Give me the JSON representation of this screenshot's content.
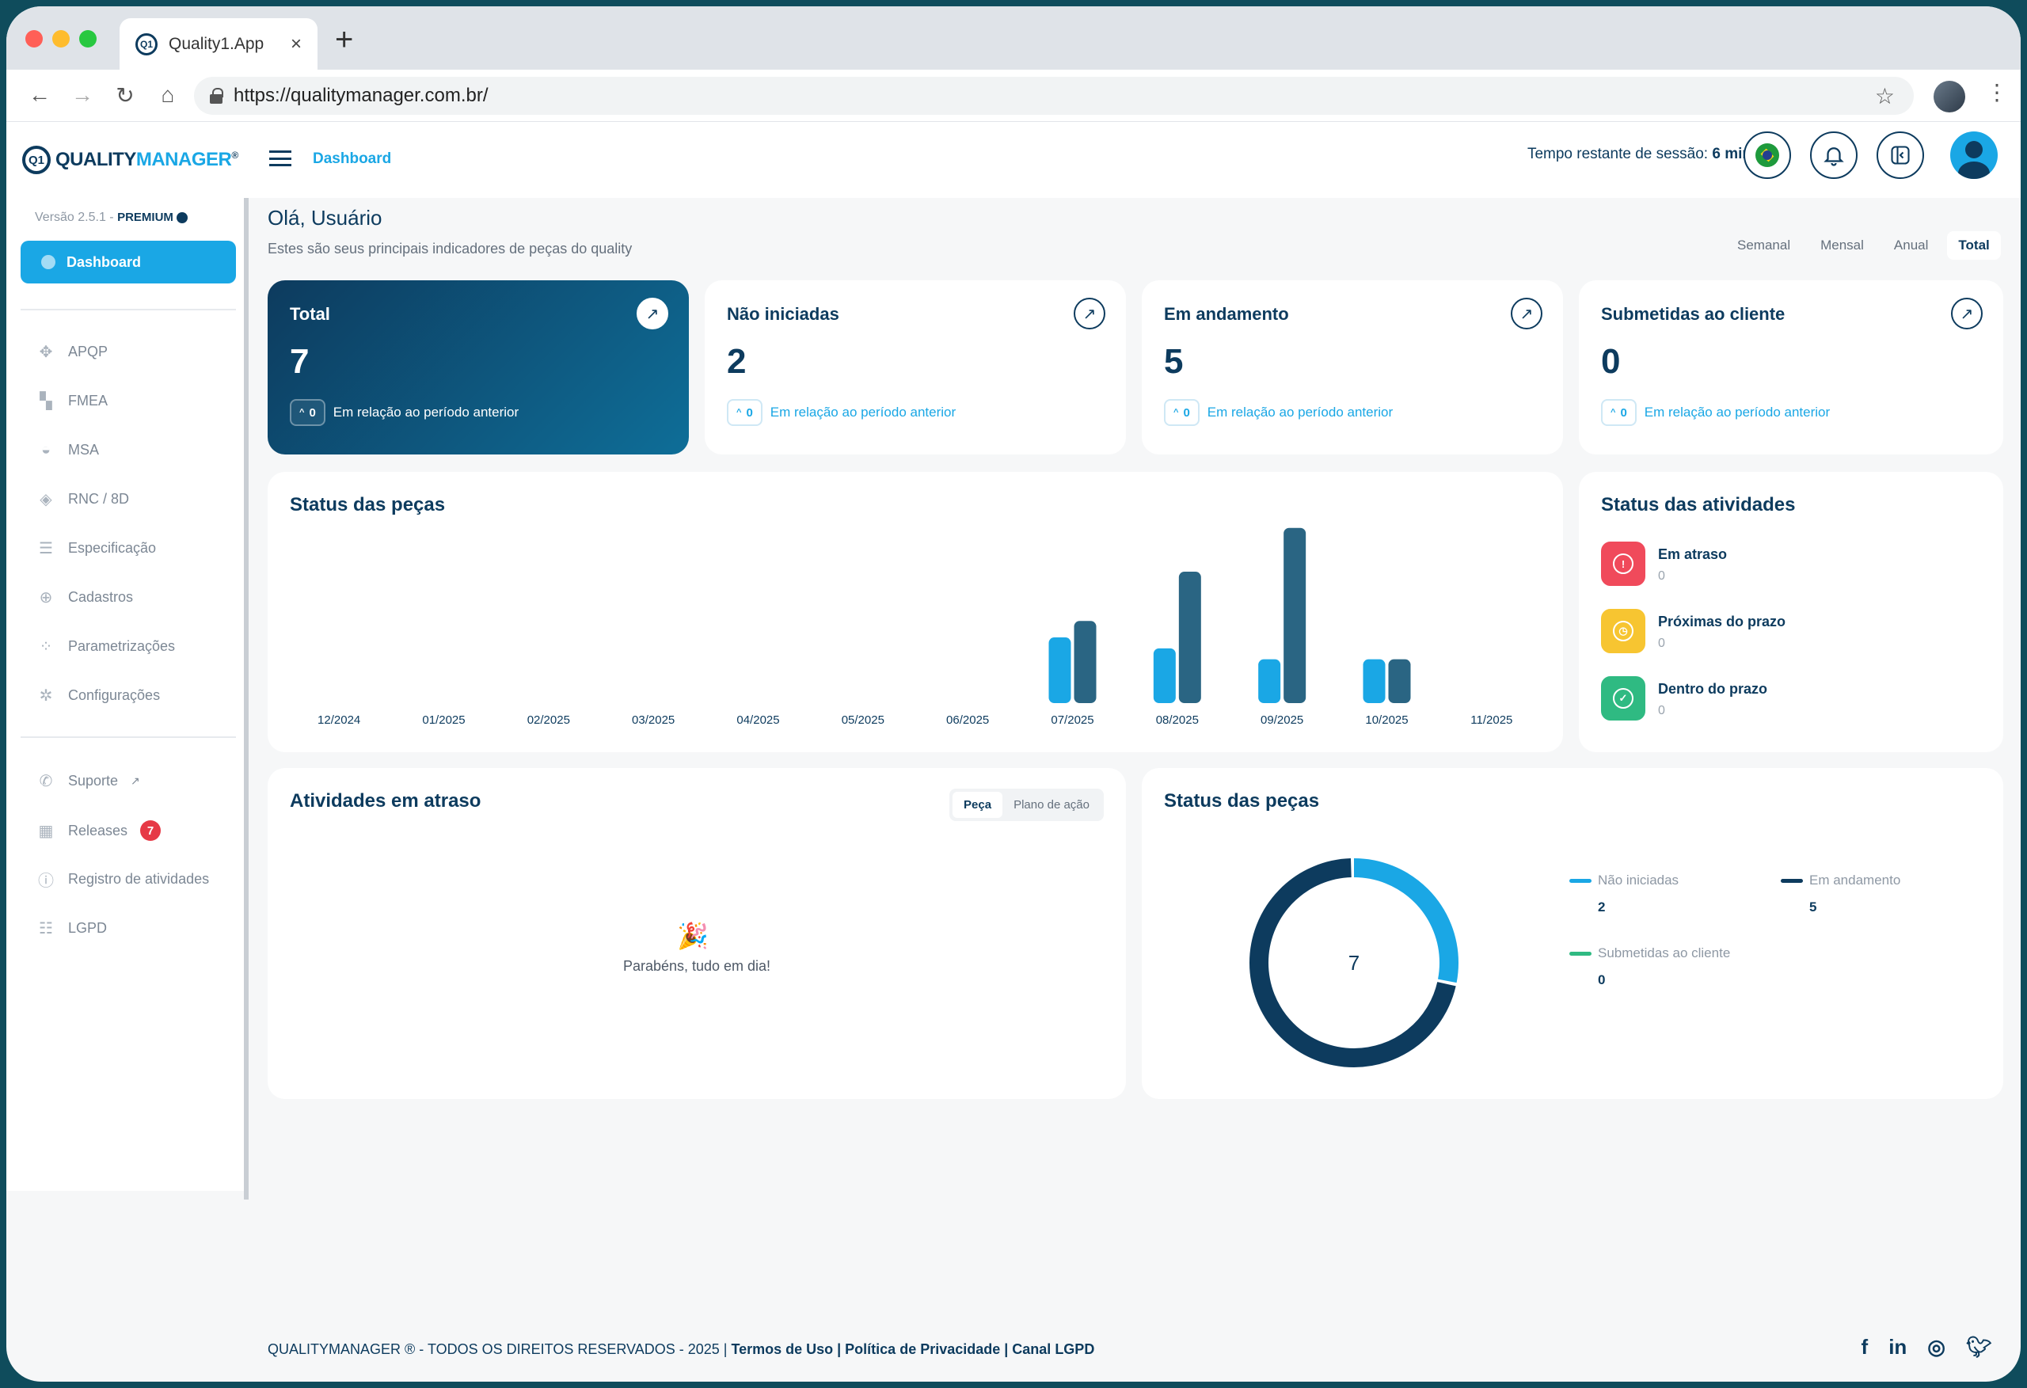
{
  "browser": {
    "tab_title": "Quality1.App",
    "tab_logo_text": "Q1",
    "url": "https://qualitymanager.com.br/"
  },
  "app": {
    "logo_part1": "QUALITY",
    "logo_part2": "MANAGER",
    "logo_reg": "®",
    "breadcrumb": "Dashboard",
    "session_label": "Tempo restante de sessão:",
    "session_value": "6 min"
  },
  "sidebar": {
    "version": "Versão 2.5.1 -",
    "plan": "PREMIUM",
    "active_item": "Dashboard",
    "items": [
      "APQP",
      "FMEA",
      "MSA",
      "RNC / 8D",
      "Especificação",
      "Cadastros",
      "Parametrizações",
      "Configurações"
    ],
    "bottom_items": [
      "Suporte",
      "Releases",
      "Registro de atividades",
      "LGPD"
    ],
    "releases_badge": "7"
  },
  "main": {
    "greeting": "Olá, Usuário",
    "subtitle": "Estes são seus principais indicadores de peças do quality",
    "periods": [
      "Semanal",
      "Mensal",
      "Anual",
      "Total"
    ],
    "selected_period": "Total"
  },
  "kpis": [
    {
      "title": "Total",
      "value": "7",
      "delta": "0",
      "delta_label": "Em relação ao período anterior"
    },
    {
      "title": "Não iniciadas",
      "value": "2",
      "delta": "0",
      "delta_label": "Em relação ao período anterior"
    },
    {
      "title": "Em andamento",
      "value": "5",
      "delta": "0",
      "delta_label": "Em relação ao período anterior"
    },
    {
      "title": "Submetidas ao cliente",
      "value": "0",
      "delta": "0",
      "delta_label": "Em relação ao período anterior"
    }
  ],
  "status_pecas_bar": {
    "title": "Status das peças"
  },
  "status_atividades": {
    "title": "Status das atividades",
    "items": [
      {
        "label": "Em atraso",
        "value": "0",
        "color": "#f04a5b"
      },
      {
        "label": "Próximas do prazo",
        "value": "0",
        "color": "#f7c531"
      },
      {
        "label": "Dentro do prazo",
        "value": "0",
        "color": "#2fba82"
      }
    ]
  },
  "atividades_atraso": {
    "title": "Atividades em atraso",
    "tabs": [
      "Peça",
      "Plano de ação"
    ],
    "empty_text": "Parabéns, tudo em dia!"
  },
  "status_pecas_donut": {
    "title": "Status das peças",
    "total": "7",
    "legend": [
      {
        "label": "Não iniciadas",
        "value": "2",
        "color": "#1aa7e5"
      },
      {
        "label": "Em andamento",
        "value": "5",
        "color": "#0d3b5e"
      },
      {
        "label": "Submetidas ao cliente",
        "value": "0",
        "color": "#2fba82"
      }
    ]
  },
  "chart_data": [
    {
      "type": "bar",
      "title": "Status das peças",
      "categories": [
        "12/2024",
        "01/2025",
        "02/2025",
        "03/2025",
        "04/2025",
        "05/2025",
        "06/2025",
        "07/2025",
        "08/2025",
        "09/2025",
        "10/2025",
        "11/2025"
      ],
      "series": [
        {
          "values": [
            0,
            0,
            0,
            0,
            0,
            0,
            0,
            1.2,
            1,
            0.8,
            0.8,
            0
          ],
          "color": "#1aa7e5"
        },
        {
          "values": [
            0,
            0,
            0,
            0,
            0,
            0,
            0,
            1.5,
            2.4,
            3.2,
            0.8,
            0
          ],
          "color": "#2a6583"
        }
      ],
      "ylim": [
        0,
        3.5
      ],
      "grid": false
    },
    {
      "type": "pie",
      "title": "Status das peças",
      "categories": [
        "Não iniciadas",
        "Em andamento",
        "Submetidas ao cliente"
      ],
      "values": [
        2,
        5,
        0
      ],
      "colors": [
        "#1aa7e5",
        "#0d3b5e",
        "#2fba82"
      ]
    }
  ],
  "footer": {
    "copyright": "QUALITYMANAGER ® - TODOS OS DIREITOS RESERVADOS - 2025 |",
    "links": "Termos de Uso | Política de Privacidade | Canal LGPD"
  }
}
